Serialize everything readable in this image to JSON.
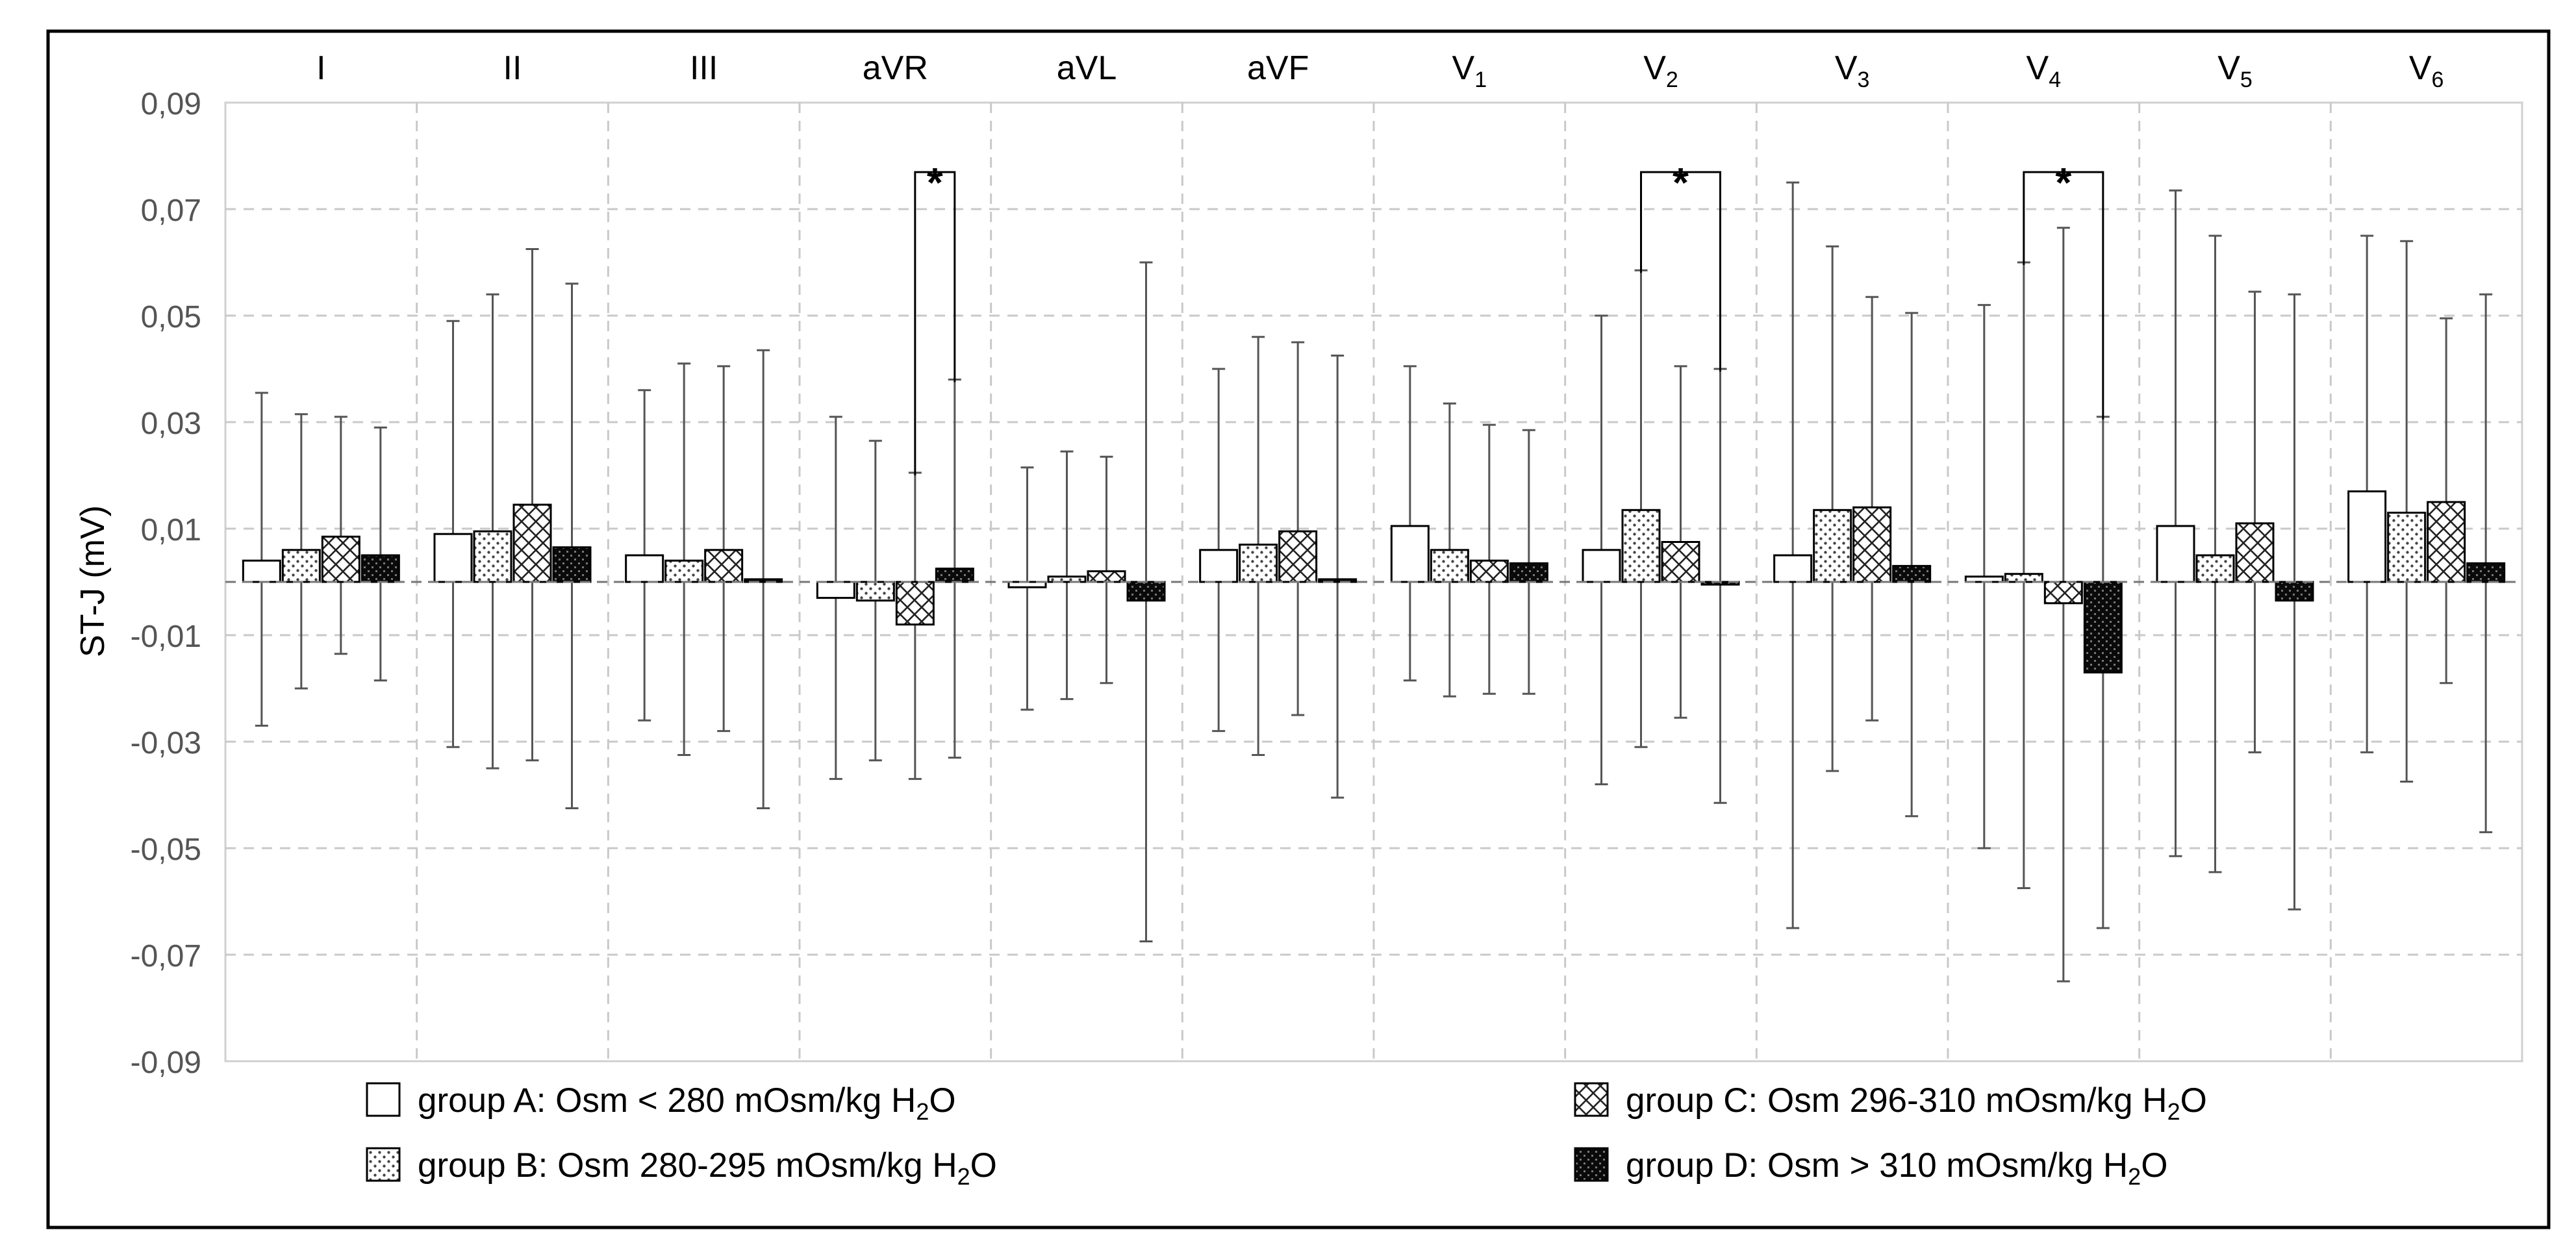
{
  "chart_data": {
    "type": "bar",
    "title": "",
    "xlabel": "",
    "ylabel": "ST-J (mV)",
    "ylim": [
      -0.09,
      0.09
    ],
    "yticks": [
      "0,09",
      "0,07",
      "0,05",
      "0,03",
      "0,01",
      "-0,01",
      "-0,03",
      "-0,05",
      "-0,07",
      "-0,09"
    ],
    "ytick_values": [
      0.09,
      0.07,
      0.05,
      0.03,
      0.01,
      -0.01,
      -0.03,
      -0.05,
      -0.07,
      -0.09
    ],
    "grid": true,
    "categories": [
      {
        "main": "I",
        "sub": ""
      },
      {
        "main": "II",
        "sub": ""
      },
      {
        "main": "III",
        "sub": ""
      },
      {
        "main": "aVR",
        "sub": ""
      },
      {
        "main": "aVL",
        "sub": ""
      },
      {
        "main": "aVF",
        "sub": ""
      },
      {
        "main": "V",
        "sub": "1"
      },
      {
        "main": "V",
        "sub": "2"
      },
      {
        "main": "V",
        "sub": "3"
      },
      {
        "main": "V",
        "sub": "4"
      },
      {
        "main": "V",
        "sub": "5"
      },
      {
        "main": "V",
        "sub": "6"
      }
    ],
    "series": [
      {
        "name": "group A",
        "pattern": "none",
        "values": [
          0.004,
          0.009,
          0.005,
          -0.003,
          -0.001,
          0.006,
          0.0105,
          0.006,
          0.005,
          0.001,
          0.0105,
          0.017
        ],
        "err_upper": [
          0.0355,
          0.049,
          0.036,
          0.031,
          0.0215,
          0.04,
          0.0405,
          0.05,
          0.075,
          0.052,
          0.0735,
          0.065
        ],
        "err_lower": [
          -0.027,
          -0.031,
          -0.026,
          -0.037,
          -0.024,
          -0.028,
          -0.0185,
          -0.038,
          -0.065,
          -0.05,
          -0.0515,
          -0.032
        ]
      },
      {
        "name": "group B",
        "pattern": "dots",
        "values": [
          0.006,
          0.0095,
          0.004,
          -0.0035,
          0.001,
          0.007,
          0.006,
          0.0135,
          0.0135,
          0.0015,
          0.005,
          0.013
        ],
        "err_upper": [
          0.0315,
          0.054,
          0.041,
          0.0265,
          0.0245,
          0.046,
          0.0335,
          0.0585,
          0.063,
          0.06,
          0.065,
          0.064
        ],
        "err_lower": [
          -0.02,
          -0.035,
          -0.0325,
          -0.0335,
          -0.022,
          -0.0325,
          -0.0215,
          -0.031,
          -0.0355,
          -0.0575,
          -0.0545,
          -0.0375
        ]
      },
      {
        "name": "group C",
        "pattern": "crosshatch",
        "values": [
          0.0085,
          0.0145,
          0.006,
          -0.008,
          0.002,
          0.0095,
          0.004,
          0.0075,
          0.014,
          -0.004,
          0.011,
          0.015
        ],
        "err_upper": [
          0.031,
          0.0625,
          0.0405,
          0.0205,
          0.0235,
          0.045,
          0.0295,
          0.0405,
          0.0535,
          0.0665,
          0.0545,
          0.0495
        ],
        "err_lower": [
          -0.0135,
          -0.0335,
          -0.028,
          -0.037,
          -0.019,
          -0.025,
          -0.021,
          -0.0255,
          -0.026,
          -0.075,
          -0.032,
          -0.019
        ]
      },
      {
        "name": "group D",
        "pattern": "dark",
        "values": [
          0.005,
          0.0065,
          0.0005,
          0.0025,
          -0.0035,
          0.0005,
          0.0035,
          -0.0005,
          0.003,
          -0.017,
          -0.0035,
          0.0035
        ],
        "err_upper": [
          0.029,
          0.056,
          0.0435,
          0.038,
          0.06,
          0.0425,
          0.0285,
          0.04,
          0.0505,
          0.031,
          0.054,
          0.054
        ],
        "err_lower": [
          -0.0185,
          -0.0425,
          -0.0425,
          -0.033,
          -0.0675,
          -0.0405,
          -0.021,
          -0.0415,
          -0.044,
          -0.065,
          -0.0615,
          -0.047
        ]
      }
    ],
    "significance": [
      {
        "category": 3,
        "from_series": 2,
        "to_series": 3,
        "label": "*"
      },
      {
        "category": 7,
        "from_series": 1,
        "to_series": 3,
        "label": "*"
      },
      {
        "category": 9,
        "from_series": 1,
        "to_series": 3,
        "label": "*"
      }
    ],
    "legend": [
      {
        "series": 0,
        "pre": "group A: Osm < 280 mOsm/kg H",
        "sub": "2",
        "post": "O"
      },
      {
        "series": 2,
        "pre": "group C: Osm 296-310 mOsm/kg H",
        "sub": "2",
        "post": "O"
      },
      {
        "series": 1,
        "pre": "group B: Osm  280-295 mOsm/kg H",
        "sub": "2",
        "post": "O"
      },
      {
        "series": 3,
        "pre": "group D: Osm > 310 mOsm/kg H",
        "sub": "2",
        "post": "O"
      }
    ],
    "legend_position": "bottom"
  }
}
